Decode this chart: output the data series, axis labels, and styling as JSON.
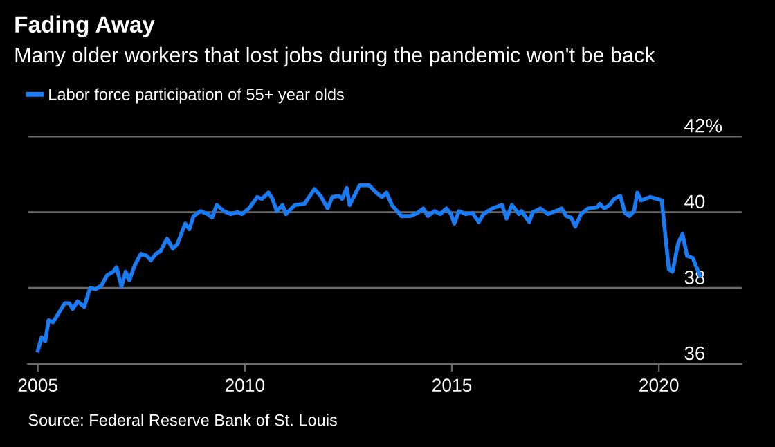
{
  "chart_data": {
    "type": "line",
    "title": "Fading Away",
    "subtitle": "Many older workers that lost jobs during the pandemic won't be back",
    "annotations": [
      "Source: Federal Reserve Bank of St. Louis"
    ],
    "x": [
      2005.0,
      2005.09,
      2005.18,
      2005.26,
      2005.37,
      2005.65,
      2005.76,
      2005.84,
      2005.96,
      2006.12,
      2006.26,
      2006.4,
      2006.54,
      2006.67,
      2006.82,
      2006.9,
      2007.02,
      2007.12,
      2007.21,
      2007.34,
      2007.49,
      2007.63,
      2007.73,
      2007.85,
      2007.96,
      2008.12,
      2008.26,
      2008.37,
      2008.56,
      2008.66,
      2008.76,
      2008.93,
      2009.1,
      2009.21,
      2009.32,
      2009.49,
      2009.66,
      2009.82,
      2009.93,
      2010.1,
      2010.3,
      2010.41,
      2010.57,
      2010.66,
      2010.77,
      2010.91,
      2010.99,
      2011.21,
      2011.44,
      2011.68,
      2011.83,
      2012.0,
      2012.11,
      2012.27,
      2012.35,
      2012.46,
      2012.53,
      2012.66,
      2012.77,
      2013.0,
      2013.17,
      2013.31,
      2013.42,
      2013.55,
      2013.78,
      2014.0,
      2014.17,
      2014.31,
      2014.42,
      2014.58,
      2014.72,
      2014.87,
      2014.98,
      2015.06,
      2015.17,
      2015.34,
      2015.5,
      2015.65,
      2015.76,
      2015.98,
      2016.21,
      2016.32,
      2016.45,
      2016.62,
      2016.68,
      2016.87,
      2016.95,
      2017.14,
      2017.32,
      2017.51,
      2017.65,
      2017.76,
      2017.88,
      2017.98,
      2018.12,
      2018.29,
      2018.51,
      2018.57,
      2018.68,
      2018.81,
      2018.92,
      2019.07,
      2019.18,
      2019.29,
      2019.4,
      2019.48,
      2019.57,
      2019.79,
      2019.96,
      2020.07,
      2020.24,
      2020.33,
      2020.46,
      2020.57,
      2020.68,
      2020.82,
      2020.99
    ],
    "series": [
      {
        "name": "Labor force participation of 55+ year olds",
        "color": "#1a7cf5",
        "values": [
          36.35,
          36.7,
          36.6,
          37.15,
          37.1,
          37.6,
          37.6,
          37.45,
          37.65,
          37.5,
          38.0,
          37.97,
          38.07,
          38.33,
          38.43,
          38.55,
          38.04,
          38.43,
          38.2,
          38.6,
          38.9,
          38.85,
          38.73,
          38.9,
          38.97,
          39.3,
          39.04,
          39.16,
          39.7,
          39.55,
          39.9,
          40.03,
          39.95,
          39.86,
          40.19,
          40.03,
          39.95,
          40.0,
          39.95,
          40.1,
          40.4,
          40.35,
          40.52,
          40.37,
          40.03,
          40.19,
          39.95,
          40.19,
          40.22,
          40.61,
          40.43,
          40.1,
          40.4,
          40.43,
          40.35,
          40.64,
          40.19,
          40.47,
          40.71,
          40.71,
          40.52,
          40.4,
          40.52,
          40.19,
          39.9,
          39.9,
          39.98,
          40.1,
          39.9,
          40.03,
          39.95,
          40.1,
          39.95,
          39.7,
          40.03,
          39.95,
          39.98,
          39.74,
          39.95,
          40.1,
          40.19,
          39.83,
          40.19,
          39.95,
          40.03,
          39.74,
          40.0,
          40.1,
          39.95,
          40.03,
          40.1,
          39.9,
          39.86,
          39.62,
          39.95,
          40.1,
          40.13,
          40.22,
          40.1,
          40.19,
          40.35,
          40.43,
          39.98,
          39.9,
          40.03,
          40.52,
          40.31,
          40.4,
          40.35,
          40.31,
          38.49,
          38.43,
          39.16,
          39.43,
          38.85,
          38.79,
          38.33
        ]
      }
    ],
    "xlim": [
      2004.76,
      2022.0
    ],
    "ylim": [
      36,
      42
    ],
    "xticks": [
      2005,
      2010,
      2015,
      2020
    ],
    "yticks": [
      36,
      38,
      40,
      {
        "value": 42,
        "label": "42%"
      }
    ],
    "grid": "y",
    "legend": "top left",
    "line_style": "solid",
    "marker": "none"
  }
}
